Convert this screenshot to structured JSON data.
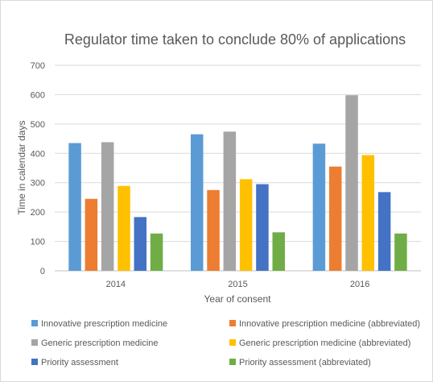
{
  "chart_data": {
    "type": "bar",
    "title": "Regulator time taken to conclude 80% of applications",
    "xlabel": "Year of consent",
    "ylabel": "Time in calendar days",
    "categories": [
      "2014",
      "2015",
      "2016"
    ],
    "ylim": [
      0,
      700
    ],
    "yticks": [
      0,
      100,
      200,
      300,
      400,
      500,
      600,
      700
    ],
    "grid": true,
    "legend_position": "bottom",
    "series": [
      {
        "name": "Innovative prescription medicine",
        "color": "#5b9bd5",
        "values": [
          435,
          465,
          433
        ]
      },
      {
        "name": "Innovative prescription medicine (abbreviated)",
        "color": "#ed7d31",
        "values": [
          245,
          275,
          355
        ]
      },
      {
        "name": "Generic prescription medicine",
        "color": "#a5a5a5",
        "values": [
          438,
          474,
          598
        ]
      },
      {
        "name": "Generic prescription medicine (abbreviated)",
        "color": "#ffc000",
        "values": [
          289,
          312,
          394
        ]
      },
      {
        "name": "Priority assessment",
        "color": "#4472c4",
        "values": [
          183,
          295,
          268
        ]
      },
      {
        "name": "Priority assessment (abbreviated)",
        "color": "#70ad47",
        "values": [
          127,
          131,
          127
        ]
      }
    ]
  }
}
